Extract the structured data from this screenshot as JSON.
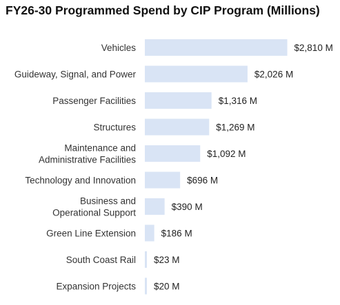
{
  "chart_data": {
    "type": "bar",
    "orientation": "horizontal",
    "title": "FY26-30 Programmed Spend by CIP Program (Millions)",
    "xlabel": "",
    "ylabel": "",
    "grid": false,
    "bar_color": "#d9e4f5",
    "categories": [
      [
        "Vehicles"
      ],
      [
        "Guideway, Signal, and Power"
      ],
      [
        "Passenger Facilities"
      ],
      [
        "Structures"
      ],
      [
        "Maintenance and",
        "Administrative Facilities"
      ],
      [
        "Technology and Innovation"
      ],
      [
        "Business and",
        "Operational Support"
      ],
      [
        "Green Line Extension"
      ],
      [
        "South Coast Rail"
      ],
      [
        "Expansion Projects"
      ]
    ],
    "values": [
      2810,
      2026,
      1316,
      1269,
      1092,
      696,
      390,
      186,
      23,
      20
    ],
    "value_labels": [
      "$2,810 M",
      "$2,026 M",
      "$1,316 M",
      "$1,269 M",
      "$1,092 M",
      "$696 M",
      "$390 M",
      "$186 M",
      "$23 M",
      "$20 M"
    ]
  }
}
